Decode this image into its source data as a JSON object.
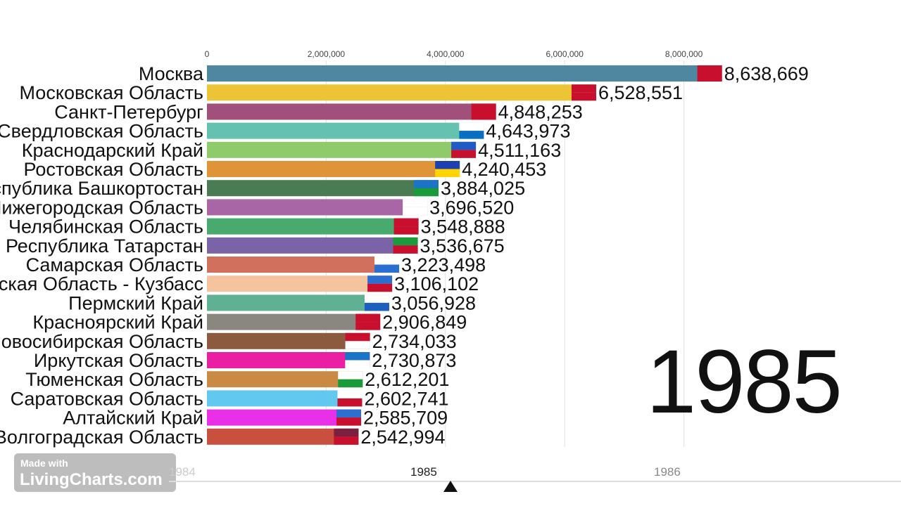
{
  "chart_data": {
    "type": "bar",
    "orientation": "horizontal",
    "current_year": "1985",
    "xlim": [
      0,
      8638669
    ],
    "x_ticks": [
      "0",
      "2,000,000",
      "4,000,000",
      "6,000,000",
      "8,000,000"
    ],
    "x_tick_values": [
      0,
      2000000,
      4000000,
      6000000,
      8000000
    ],
    "grid": true,
    "categories": [
      "Москва",
      "Московская Область",
      "Санкт-Петербург",
      "Свердловская Область",
      "Краснодарский Край",
      "Ростовская Область",
      "Республика Башкортостан",
      "Нижегородская Область",
      "Челябинская Область",
      "Республика Татарстан",
      "Самарская Область",
      "Кемеровская Область - Кузбасс",
      "Пермский Край",
      "Красноярский Край",
      "Новосибирская Область",
      "Иркутская Область",
      "Тюменская Область",
      "Саратовская Область",
      "Алтайский Край",
      "Волгоградская Область"
    ],
    "values": [
      8638669,
      6528551,
      4848253,
      4643973,
      4511163,
      4240453,
      3884025,
      3696520,
      3548888,
      3536675,
      3223498,
      3106102,
      3056928,
      2906849,
      2734033,
      2730873,
      2612201,
      2602741,
      2585709,
      2542994
    ],
    "value_labels": [
      "8,638,669",
      "6,528,551",
      "4,848,253",
      "4,643,973",
      "4,511,163",
      "4,240,453",
      "3,884,025",
      "3,696,520",
      "3,548,888",
      "3,536,675",
      "3,223,498",
      "3,106,102",
      "3,056,928",
      "2,906,849",
      "2,734,033",
      "2,730,873",
      "2,612,201",
      "2,602,741",
      "2,585,709",
      "2,542,994"
    ],
    "colors": [
      "#4f87a0",
      "#ecc435",
      "#a0507a",
      "#66c2b0",
      "#8fcb6a",
      "#e09438",
      "#4a7b52",
      "#a866a6",
      "#48aa6e",
      "#7b63a8",
      "#d2705e",
      "#f3c49e",
      "#60b094",
      "#898780",
      "#8c5a3e",
      "#e91fa4",
      "#c98a44",
      "#63c8f0",
      "#e92fe8",
      "#c9503f"
    ],
    "flag_colors": [
      [
        "#c8102e",
        "#c8102e"
      ],
      [
        "#c8102e",
        "#c8102e"
      ],
      [
        "#c8102e",
        "#c8102e"
      ],
      [
        "#ffffff",
        "#0a6fc2"
      ],
      [
        "#1e5bc6",
        "#c8102e"
      ],
      [
        "#1e3fb0",
        "#ffd400"
      ],
      [
        "#1a75c9",
        "#1a9b3b"
      ],
      [
        "#ffffff",
        "#ffffff"
      ],
      [
        "#c8102e",
        "#c8102e"
      ],
      [
        "#1a9b3b",
        "#c8102e"
      ],
      [
        "#ffffff",
        "#2b6fd1"
      ],
      [
        "#2b6fd1",
        "#c8102e"
      ],
      [
        "#ffffff",
        "#1c5fbf"
      ],
      [
        "#c8102e",
        "#c8102e"
      ],
      [
        "#c8102e",
        "#ffffff"
      ],
      [
        "#1a75c9",
        "#ffffff"
      ],
      [
        "#ffffff",
        "#1a9b3b"
      ],
      [
        "#ffffff",
        "#c8102e"
      ],
      [
        "#2b6fd1",
        "#c8102e"
      ],
      [
        "#7a1f3d",
        "#c8102e"
      ]
    ]
  },
  "timeline": {
    "labels": [
      "1984",
      "1985",
      "1986"
    ]
  },
  "watermark": {
    "line1": "Made with",
    "line2": "LivingCharts.com"
  }
}
